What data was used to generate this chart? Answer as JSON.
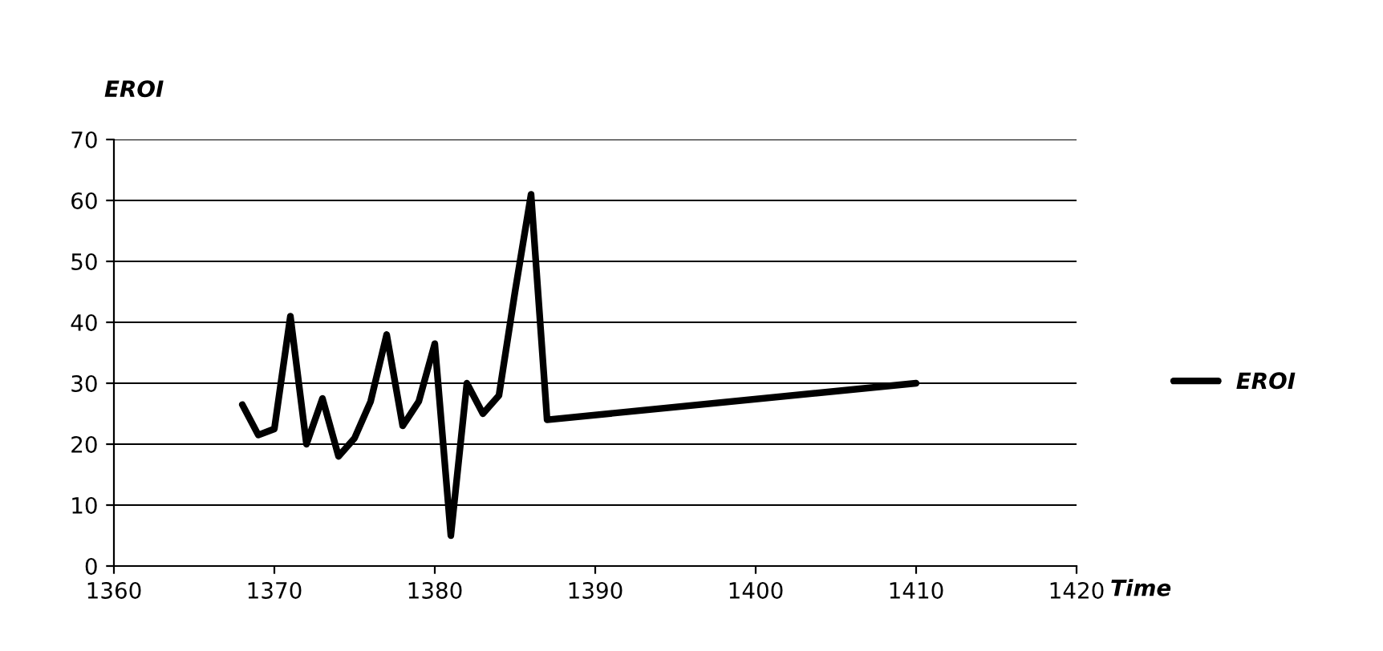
{
  "chart_data": {
    "type": "line",
    "ylabel": "EROI",
    "xlabel": "Time",
    "series": [
      {
        "name": "EROI",
        "color": "#000000",
        "x": [
          1368,
          1369,
          1370,
          1371,
          1372,
          1373,
          1374,
          1375,
          1376,
          1377,
          1378,
          1379,
          1380,
          1381,
          1382,
          1383,
          1384,
          1385,
          1386,
          1387,
          1410
        ],
        "values": [
          26.5,
          21.5,
          22.5,
          41,
          20,
          27.5,
          18,
          21,
          27,
          38,
          23,
          27,
          36.5,
          5,
          30,
          25,
          28,
          45,
          61,
          24,
          30
        ]
      }
    ],
    "xlim": [
      1360,
      1420
    ],
    "xticks": [
      1360,
      1370,
      1380,
      1390,
      1400,
      1410,
      1420
    ],
    "ylim": [
      0,
      70
    ],
    "yticks": [
      0,
      10,
      20,
      30,
      40,
      50,
      60,
      70
    ],
    "grid": "y",
    "legend": "right",
    "marker": "none",
    "line_style": "solid"
  }
}
